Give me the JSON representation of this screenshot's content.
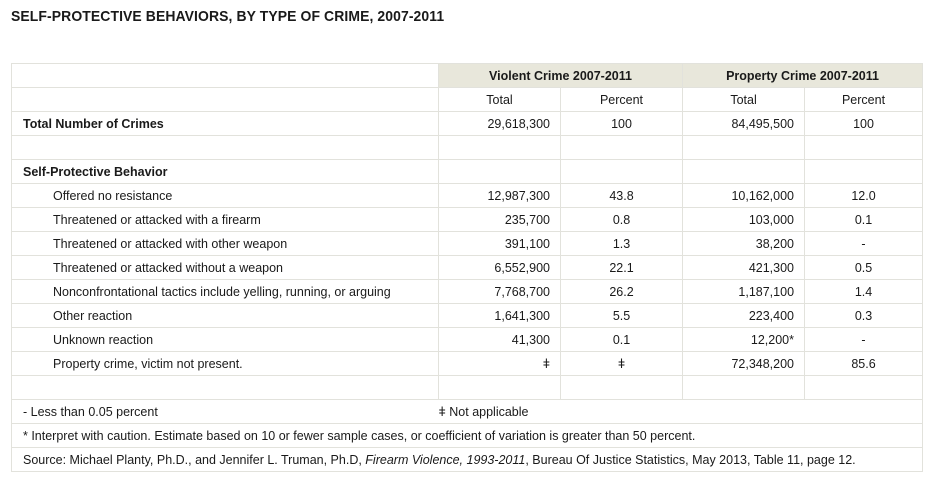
{
  "title": "SELF-PROTECTIVE BEHAVIORS, BY TYPE OF CRIME, 2007-2011",
  "headers": {
    "violent": "Violent Crime 2007-2011",
    "property": "Property Crime 2007-2011",
    "total": "Total",
    "percent": "Percent"
  },
  "total_row": {
    "label": "Total Number of Crimes",
    "violent_total": "29,618,300",
    "violent_percent": "100",
    "property_total": "84,495,500",
    "property_percent": "100"
  },
  "section_label": "Self-Protective Behavior",
  "rows": [
    {
      "label": "Offered no resistance",
      "vt": "12,987,300",
      "vp": "43.8",
      "pt": "10,162,000",
      "pp": "12.0"
    },
    {
      "label": "Threatened or attacked with a firearm",
      "vt": "235,700",
      "vp": "0.8",
      "pt": "103,000",
      "pp": "0.1"
    },
    {
      "label": "Threatened or attacked with other weapon",
      "vt": "391,100",
      "vp": "1.3",
      "pt": "38,200",
      "pp": "-"
    },
    {
      "label": "Threatened or attacked without a weapon",
      "vt": "6,552,900",
      "vp": "22.1",
      "pt": "421,300",
      "pp": "0.5"
    },
    {
      "label": "Nonconfrontational tactics include yelling, running, or arguing",
      "vt": "7,768,700",
      "vp": "26.2",
      "pt": "1,187,100",
      "pp": "1.4"
    },
    {
      "label": "Other reaction",
      "vt": "1,641,300",
      "vp": "5.5",
      "pt": "223,400",
      "pp": "0.3"
    },
    {
      "label": "Unknown reaction",
      "vt": "41,300",
      "vp": "0.1",
      "pt": "12,200*",
      "pp": "-"
    },
    {
      "label": "Property crime, victim not present.",
      "vt": "ǂ",
      "vp": "ǂ",
      "pt": "72,348,200",
      "pp": "85.6"
    }
  ],
  "footnotes": {
    "less_than": "- Less than 0.05 percent",
    "not_applicable": "ǂ Not applicable",
    "caution": "* Interpret with caution.  Estimate based on 10 or fewer sample cases, or coefficient of variation is greater than 50 percent.",
    "source_prefix": "Source: Michael Planty, Ph.D., and Jennifer L. Truman, Ph.D, ",
    "source_title": "Firearm Violence, 1993-2011",
    "source_suffix": ", Bureau Of Justice Statistics, May 2013, Table 11, page 12."
  }
}
